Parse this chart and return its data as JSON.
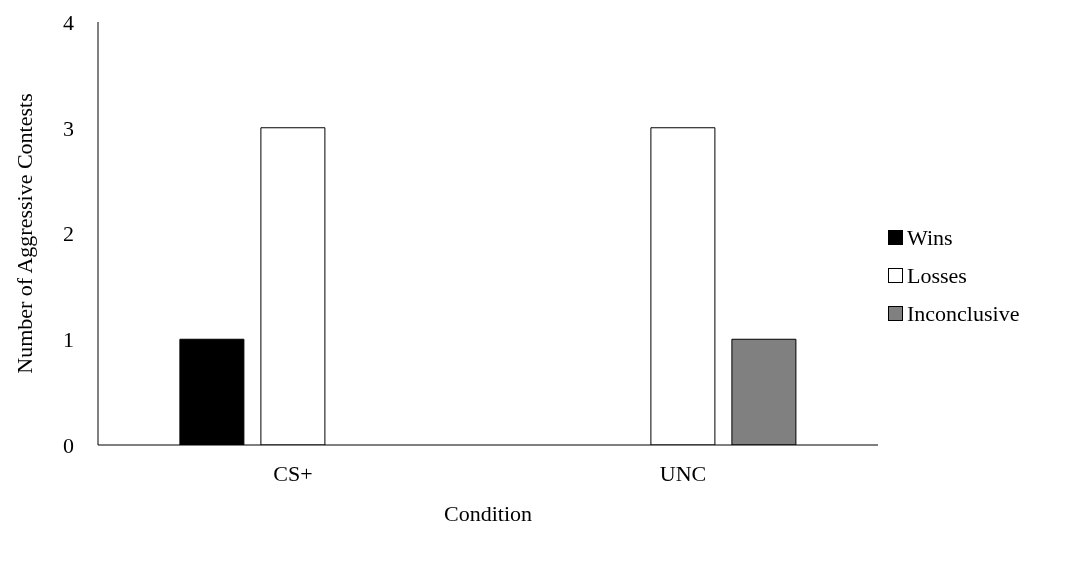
{
  "chart_data": {
    "type": "bar",
    "xlabel": "Condition",
    "ylabel": "Number of Aggressive Contests",
    "categories": [
      "CS+",
      "UNC"
    ],
    "series": [
      {
        "name": "Wins",
        "color": "#000000",
        "values": [
          1,
          0
        ]
      },
      {
        "name": "Losses",
        "color": "#ffffff",
        "values": [
          3,
          3
        ]
      },
      {
        "name": "Inconclusive",
        "color": "#808080",
        "values": [
          0,
          1
        ]
      }
    ],
    "ylim": [
      0,
      4
    ],
    "yticks": [
      0,
      1,
      2,
      3,
      4
    ],
    "grid": false,
    "legend": "right"
  }
}
